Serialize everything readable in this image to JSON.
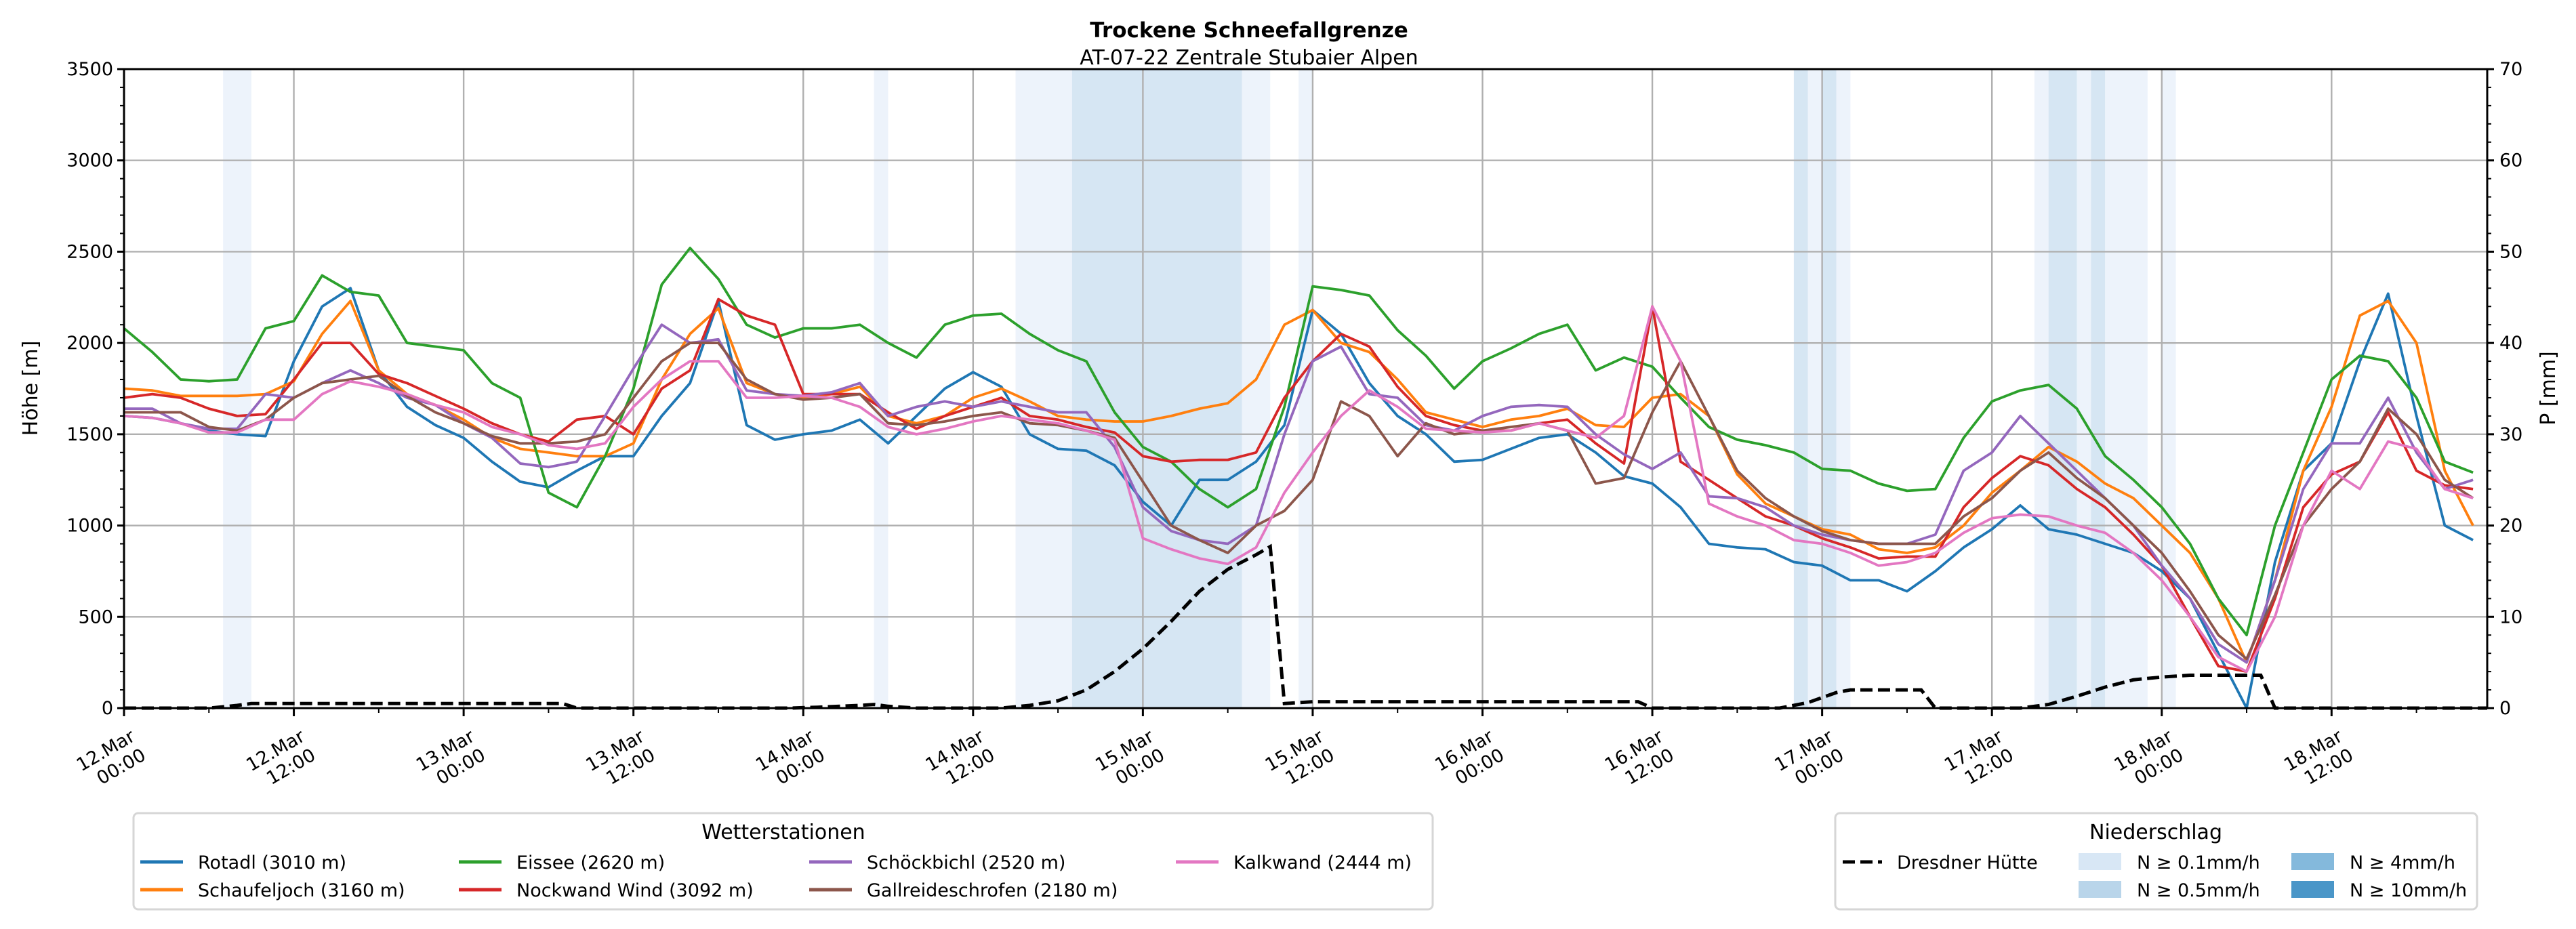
{
  "chart_data": {
    "type": "line",
    "title": "Trockene Schneefallgrenze",
    "subtitle": "AT-07-22 Zentrale Stubaier Alpen",
    "ylabel": "Höhe [m]",
    "y2label": "P [mm]",
    "ylim": [
      0,
      3500
    ],
    "y2lim": [
      0,
      70
    ],
    "xlim_hours": [
      0,
      167
    ],
    "x_unit": "hours since 12.Mar 00:00",
    "yticks": [
      "0",
      "500",
      "1000",
      "1500",
      "2000",
      "2500",
      "3000",
      "3500"
    ],
    "y2ticks": [
      "0",
      "10",
      "20",
      "30",
      "40",
      "50",
      "60",
      "70"
    ],
    "xticks": [
      {
        "h": 0,
        "line1": "12.Mar",
        "line2": "00:00"
      },
      {
        "h": 12,
        "line1": "12.Mar",
        "line2": "12:00"
      },
      {
        "h": 24,
        "line1": "13.Mar",
        "line2": "00:00"
      },
      {
        "h": 36,
        "line1": "13.Mar",
        "line2": "12:00"
      },
      {
        "h": 48,
        "line1": "14.Mar",
        "line2": "00:00"
      },
      {
        "h": 60,
        "line1": "14.Mar",
        "line2": "12:00"
      },
      {
        "h": 72,
        "line1": "15.Mar",
        "line2": "00:00"
      },
      {
        "h": 84,
        "line1": "15.Mar",
        "line2": "12:00"
      },
      {
        "h": 96,
        "line1": "16.Mar",
        "line2": "00:00"
      },
      {
        "h": 108,
        "line1": "16.Mar",
        "line2": "12:00"
      },
      {
        "h": 120,
        "line1": "17.Mar",
        "line2": "00:00"
      },
      {
        "h": 132,
        "line1": "17.Mar",
        "line2": "12:00"
      },
      {
        "h": 144,
        "line1": "18.Mar",
        "line2": "00:00"
      },
      {
        "h": 156,
        "line1": "18.Mar",
        "line2": "12:00"
      }
    ],
    "grid": true,
    "x_step_hours": 2,
    "series": [
      {
        "name": "Rotadl (3010 m)",
        "color": "#1f77b4",
        "values": [
          1600,
          1590,
          1560,
          1520,
          1500,
          1490,
          1900,
          2200,
          2300,
          1850,
          1650,
          1550,
          1480,
          1350,
          1240,
          1210,
          1300,
          1380,
          1380,
          1600,
          1780,
          2230,
          1550,
          1470,
          1500,
          1520,
          1580,
          1450,
          1600,
          1750,
          1840,
          1760,
          1500,
          1420,
          1410,
          1330,
          1130,
          1000,
          1250,
          1250,
          1350,
          1550,
          2180,
          2050,
          1780,
          1600,
          1500,
          1350,
          1360,
          1420,
          1480,
          1500,
          1400,
          1270,
          1230,
          1100,
          900,
          880,
          870,
          800,
          780,
          700,
          700,
          640,
          750,
          880,
          980,
          1110,
          980,
          950,
          900,
          850,
          750,
          600,
          300,
          0,
          800,
          1300,
          1450,
          1900,
          2270,
          1600,
          1000,
          920
        ]
      },
      {
        "name": "Schaufeljoch (3160 m)",
        "color": "#ff7f0e",
        "values": [
          1750,
          1740,
          1710,
          1710,
          1710,
          1720,
          1790,
          2050,
          2230,
          1850,
          1720,
          1660,
          1580,
          1480,
          1420,
          1400,
          1380,
          1380,
          1450,
          1800,
          2050,
          2190,
          1780,
          1720,
          1700,
          1720,
          1760,
          1600,
          1560,
          1600,
          1700,
          1750,
          1680,
          1600,
          1580,
          1570,
          1570,
          1600,
          1640,
          1670,
          1800,
          2100,
          2180,
          2000,
          1950,
          1800,
          1620,
          1580,
          1540,
          1580,
          1600,
          1640,
          1550,
          1540,
          1700,
          1720,
          1600,
          1280,
          1120,
          1050,
          980,
          950,
          870,
          850,
          880,
          1000,
          1180,
          1300,
          1430,
          1350,
          1230,
          1150,
          1000,
          850,
          600,
          250,
          700,
          1300,
          1650,
          2150,
          2230,
          2000,
          1300,
          1000
        ]
      },
      {
        "name": "Eissee (2620 m)",
        "color": "#2ca02c",
        "values": [
          2080,
          1950,
          1800,
          1790,
          1800,
          2080,
          2120,
          2370,
          2280,
          2260,
          2000,
          1980,
          1960,
          1780,
          1700,
          1180,
          1100,
          1380,
          1750,
          2320,
          2520,
          2350,
          2100,
          2030,
          2080,
          2080,
          2100,
          2000,
          1920,
          2100,
          2150,
          2160,
          2050,
          1960,
          1900,
          1620,
          1430,
          1350,
          1200,
          1100,
          1200,
          1650,
          2310,
          2290,
          2260,
          2070,
          1930,
          1750,
          1900,
          1970,
          2050,
          2100,
          1850,
          1920,
          1870,
          1700,
          1540,
          1470,
          1440,
          1400,
          1310,
          1300,
          1230,
          1190,
          1200,
          1480,
          1680,
          1740,
          1770,
          1640,
          1380,
          1250,
          1100,
          900,
          600,
          400,
          1000,
          1400,
          1800,
          1930,
          1900,
          1700,
          1350,
          1290
        ]
      },
      {
        "name": "Nockwand Wind (3092 m)",
        "color": "#d62728",
        "values": [
          1700,
          1720,
          1700,
          1640,
          1600,
          1610,
          1800,
          2000,
          2000,
          1830,
          1780,
          1710,
          1640,
          1560,
          1500,
          1460,
          1580,
          1600,
          1500,
          1750,
          1850,
          2240,
          2150,
          2100,
          1720,
          1720,
          1720,
          1620,
          1530,
          1600,
          1650,
          1700,
          1600,
          1580,
          1540,
          1510,
          1380,
          1350,
          1360,
          1360,
          1400,
          1700,
          1900,
          2050,
          1980,
          1760,
          1600,
          1550,
          1520,
          1520,
          1560,
          1580,
          1450,
          1340,
          2200,
          1350,
          1250,
          1150,
          1050,
          1000,
          930,
          880,
          820,
          830,
          830,
          1100,
          1260,
          1380,
          1330,
          1200,
          1100,
          950,
          780,
          500,
          230,
          200,
          600,
          1100,
          1280,
          1350,
          1620,
          1300,
          1220,
          1200
        ]
      },
      {
        "name": "Schöckbichl (2520 m)",
        "color": "#9467bd",
        "values": [
          1640,
          1640,
          1560,
          1530,
          1530,
          1720,
          1700,
          1780,
          1850,
          1780,
          1700,
          1660,
          1560,
          1480,
          1340,
          1320,
          1350,
          1600,
          1860,
          2100,
          2000,
          2020,
          1740,
          1720,
          1710,
          1730,
          1780,
          1600,
          1650,
          1680,
          1650,
          1680,
          1650,
          1620,
          1620,
          1430,
          1100,
          970,
          920,
          900,
          1000,
          1500,
          1900,
          1980,
          1720,
          1700,
          1550,
          1520,
          1600,
          1650,
          1660,
          1650,
          1500,
          1390,
          1310,
          1400,
          1160,
          1150,
          1100,
          1000,
          950,
          920,
          900,
          900,
          950,
          1300,
          1400,
          1600,
          1450,
          1300,
          1150,
          1000,
          780,
          600,
          350,
          250,
          700,
          1200,
          1450,
          1450,
          1700,
          1400,
          1200,
          1250
        ]
      },
      {
        "name": "Gallreideschrofen (2180 m)",
        "color": "#8c564b",
        "values": [
          1620,
          1620,
          1620,
          1540,
          1520,
          1580,
          1700,
          1780,
          1800,
          1820,
          1710,
          1620,
          1560,
          1490,
          1450,
          1450,
          1460,
          1500,
          1700,
          1900,
          2000,
          2000,
          1800,
          1720,
          1690,
          1700,
          1720,
          1560,
          1550,
          1570,
          1600,
          1620,
          1560,
          1550,
          1520,
          1480,
          1240,
          1000,
          920,
          850,
          1000,
          1080,
          1250,
          1680,
          1600,
          1380,
          1560,
          1500,
          1520,
          1540,
          1560,
          1520,
          1230,
          1260,
          1620,
          1900,
          1600,
          1300,
          1150,
          1050,
          970,
          920,
          900,
          900,
          900,
          1050,
          1150,
          1300,
          1400,
          1260,
          1150,
          1000,
          850,
          640,
          400,
          270,
          620,
          1000,
          1200,
          1350,
          1640,
          1500,
          1250,
          1150
        ]
      },
      {
        "name": "Kalkwand (2444 m)",
        "color": "#e377c2",
        "values": [
          1600,
          1590,
          1560,
          1510,
          1510,
          1580,
          1580,
          1720,
          1790,
          1760,
          1720,
          1660,
          1620,
          1540,
          1500,
          1440,
          1420,
          1450,
          1650,
          1800,
          1900,
          1900,
          1700,
          1700,
          1710,
          1700,
          1650,
          1540,
          1500,
          1530,
          1570,
          1600,
          1580,
          1560,
          1520,
          1470,
          930,
          870,
          820,
          790,
          880,
          1180,
          1400,
          1600,
          1740,
          1650,
          1530,
          1520,
          1510,
          1520,
          1560,
          1520,
          1480,
          1600,
          2200,
          1900,
          1120,
          1050,
          1000,
          920,
          900,
          850,
          780,
          800,
          850,
          960,
          1040,
          1060,
          1050,
          1000,
          960,
          850,
          700,
          500,
          280,
          200,
          500,
          1000,
          1300,
          1200,
          1460,
          1420,
          1200,
          1150
        ]
      }
    ],
    "precip_series": {
      "name": "Dresdner Hütte",
      "color": "#000000",
      "axis": "right",
      "points_h_mm": [
        [
          0,
          0
        ],
        [
          6,
          0
        ],
        [
          8,
          0.3
        ],
        [
          9,
          0.5
        ],
        [
          31,
          0.5
        ],
        [
          32,
          0
        ],
        [
          47,
          0
        ],
        [
          49,
          0.1
        ],
        [
          52,
          0.3
        ],
        [
          53,
          0.4
        ],
        [
          54,
          0.2
        ],
        [
          56,
          0
        ],
        [
          62,
          0
        ],
        [
          64,
          0.3
        ],
        [
          66,
          0.8
        ],
        [
          68,
          2
        ],
        [
          70,
          4
        ],
        [
          72,
          6.5
        ],
        [
          74,
          9.5
        ],
        [
          76,
          12.8
        ],
        [
          78,
          15.2
        ],
        [
          80,
          16.8
        ],
        [
          81,
          17.7
        ],
        [
          82,
          0.5
        ],
        [
          84,
          0.7
        ],
        [
          107,
          0.7
        ],
        [
          108,
          0
        ],
        [
          117,
          0
        ],
        [
          119,
          0.6
        ],
        [
          121,
          1.7
        ],
        [
          122,
          2
        ],
        [
          127,
          2
        ],
        [
          128,
          0
        ],
        [
          134,
          0
        ],
        [
          136,
          0.4
        ],
        [
          138,
          1.3
        ],
        [
          140,
          2.3
        ],
        [
          142,
          3.1
        ],
        [
          144,
          3.4
        ],
        [
          146,
          3.6
        ],
        [
          151,
          3.6
        ],
        [
          152,
          0
        ],
        [
          167,
          0
        ]
      ]
    },
    "precip_bands": [
      {
        "from": 7,
        "to": 9,
        "level": "N ≥ 0.1mm/h"
      },
      {
        "from": 53,
        "to": 54,
        "level": "N ≥ 0.1mm/h"
      },
      {
        "from": 63,
        "to": 67,
        "level": "N ≥ 0.1mm/h"
      },
      {
        "from": 67,
        "to": 79,
        "level": "N ≥ 0.5mm/h"
      },
      {
        "from": 79,
        "to": 81,
        "level": "N ≥ 0.1mm/h"
      },
      {
        "from": 83,
        "to": 84,
        "level": "N ≥ 0.1mm/h"
      },
      {
        "from": 118,
        "to": 119,
        "level": "N ≥ 0.5mm/h"
      },
      {
        "from": 119,
        "to": 120,
        "level": "N ≥ 0.1mm/h"
      },
      {
        "from": 120,
        "to": 121,
        "level": "N ≥ 0.5mm/h"
      },
      {
        "from": 121,
        "to": 122,
        "level": "N ≥ 0.1mm/h"
      },
      {
        "from": 135,
        "to": 136,
        "level": "N ≥ 0.1mm/h"
      },
      {
        "from": 136,
        "to": 138,
        "level": "N ≥ 0.5mm/h"
      },
      {
        "from": 138,
        "to": 139,
        "level": "N ≥ 0.1mm/h"
      },
      {
        "from": 139,
        "to": 140,
        "level": "N ≥ 0.5mm/h"
      },
      {
        "from": 140,
        "to": 143,
        "level": "N ≥ 0.1mm/h"
      },
      {
        "from": 144,
        "to": 145,
        "level": "N ≥ 0.1mm/h"
      }
    ],
    "band_colors": {
      "N ≥ 0.1mm/h": "#edf3fb",
      "N ≥ 0.5mm/h": "#d6e6f3"
    },
    "legend_stations": {
      "title": "Wetterstationen",
      "placement": "bottom-left",
      "items": [
        {
          "label": "Rotadl (3010 m)",
          "color": "#1f77b4"
        },
        {
          "label": "Schaufeljoch (3160 m)",
          "color": "#ff7f0e"
        },
        {
          "label": "Eissee (2620 m)",
          "color": "#2ca02c"
        },
        {
          "label": "Nockwand Wind (3092 m)",
          "color": "#d62728"
        },
        {
          "label": "Schöckbichl (2520 m)",
          "color": "#9467bd"
        },
        {
          "label": "Gallreideschrofen (2180 m)",
          "color": "#8c564b"
        },
        {
          "label": "Kalkwand (2444 m)",
          "color": "#e377c2"
        }
      ]
    },
    "legend_precip": {
      "title": "Niederschlag",
      "placement": "bottom-right",
      "line_label": "Dresdner Hütte",
      "patches": [
        {
          "label": "N ≥ 0.1mm/h",
          "color": "#d8e7f5"
        },
        {
          "label": "N ≥ 0.5mm/h",
          "color": "#b9d5ea"
        },
        {
          "label": "N ≥ 4mm/h",
          "color": "#84b9dc"
        },
        {
          "label": "N ≥ 10mm/h",
          "color": "#4a96c8"
        }
      ]
    }
  }
}
